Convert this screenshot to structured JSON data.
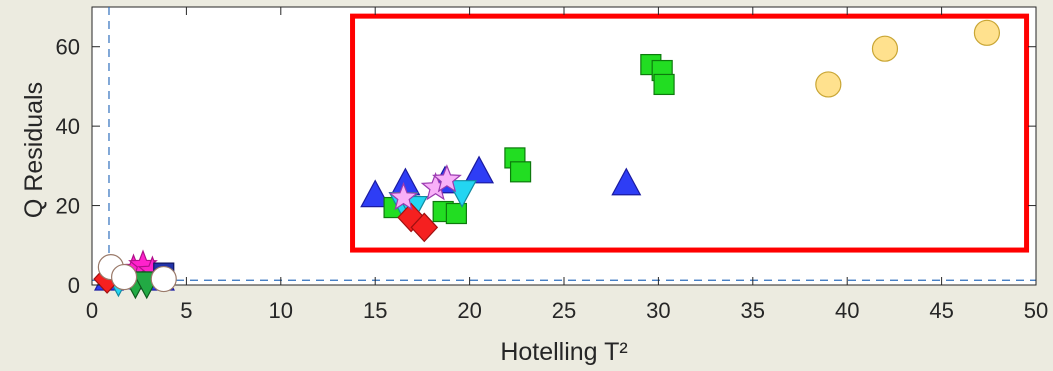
{
  "chart_data": {
    "type": "scatter",
    "title": "",
    "xlabel": "Hotelling T²",
    "ylabel": "Q Residuals",
    "xlim": [
      0,
      50
    ],
    "ylim": [
      0,
      70
    ],
    "x_ticks": [
      0,
      5,
      10,
      15,
      20,
      25,
      30,
      35,
      40,
      45,
      50
    ],
    "y_ticks": [
      0,
      20,
      40,
      60
    ],
    "grid": false,
    "legend": "none",
    "threshold_lines": {
      "x": 0.9,
      "y": 1.2,
      "color": "#2f6fbd",
      "style": "dashed"
    },
    "highlight_box": {
      "x_range": [
        13.8,
        49.5
      ],
      "y_range": [
        8.8,
        67.7
      ],
      "color": "#ff0000"
    },
    "series": [
      {
        "marker": "triangle-up",
        "color": "#2e3df5",
        "edge": "#1a1aa0",
        "points": [
          [
            15.0,
            22.5
          ],
          [
            16.6,
            25.5
          ],
          [
            18.7,
            26.0
          ],
          [
            20.5,
            28.5
          ],
          [
            28.3,
            25.5
          ],
          [
            0.9,
            1.5
          ],
          [
            2.6,
            1.8
          ],
          [
            3.6,
            1.5
          ]
        ]
      },
      {
        "marker": "square",
        "color": "#22dd22",
        "edge": "#0d7a0d",
        "points": [
          [
            29.6,
            55.5
          ],
          [
            30.2,
            54.0
          ],
          [
            30.3,
            50.5
          ],
          [
            22.4,
            32.0
          ],
          [
            22.7,
            28.5
          ],
          [
            16.0,
            19.5
          ],
          [
            18.6,
            18.5
          ],
          [
            19.3,
            18.0
          ],
          [
            3.5,
            2.5
          ]
        ]
      },
      {
        "marker": "circle",
        "color": "#ffe18e",
        "edge": "#c9a635",
        "points": [
          [
            39.0,
            50.5
          ],
          [
            42.0,
            59.5
          ],
          [
            47.4,
            63.5
          ]
        ]
      },
      {
        "marker": "triangle-down",
        "color": "#23d5f2",
        "edge": "#138aa0",
        "points": [
          [
            16.5,
            20.5
          ],
          [
            17.0,
            19.5
          ],
          [
            19.6,
            23.5
          ],
          [
            1.4,
            1.0
          ]
        ]
      },
      {
        "marker": "diamond",
        "color": "#f52020",
        "edge": "#a01010",
        "points": [
          [
            16.9,
            17.0
          ],
          [
            17.6,
            14.5
          ],
          [
            0.8,
            1.5
          ]
        ]
      },
      {
        "marker": "star",
        "color": "#f8b0f8",
        "edge": "#9a3ab0",
        "points": [
          [
            16.5,
            22.0
          ],
          [
            18.2,
            24.5
          ],
          [
            18.8,
            26.5
          ]
        ]
      },
      {
        "marker": "star",
        "color": "#ff22cc",
        "edge": "#b0108a",
        "points": [
          [
            2.2,
            4.0
          ],
          [
            2.7,
            5.0
          ],
          [
            3.2,
            3.5
          ]
        ]
      },
      {
        "marker": "triangle-down",
        "color": "#22aa44",
        "edge": "#0d5a1d",
        "points": [
          [
            2.3,
            0.5
          ],
          [
            2.9,
            0.5
          ]
        ]
      },
      {
        "marker": "square",
        "color": "#2233aa",
        "edge": "#101560",
        "points": [
          [
            3.8,
            3.0
          ]
        ]
      },
      {
        "marker": "circle",
        "color": "#ffffff",
        "edge": "#9a7a6a",
        "points": [
          [
            1.0,
            4.5
          ],
          [
            1.7,
            2.0
          ],
          [
            3.8,
            1.5
          ]
        ]
      }
    ]
  }
}
